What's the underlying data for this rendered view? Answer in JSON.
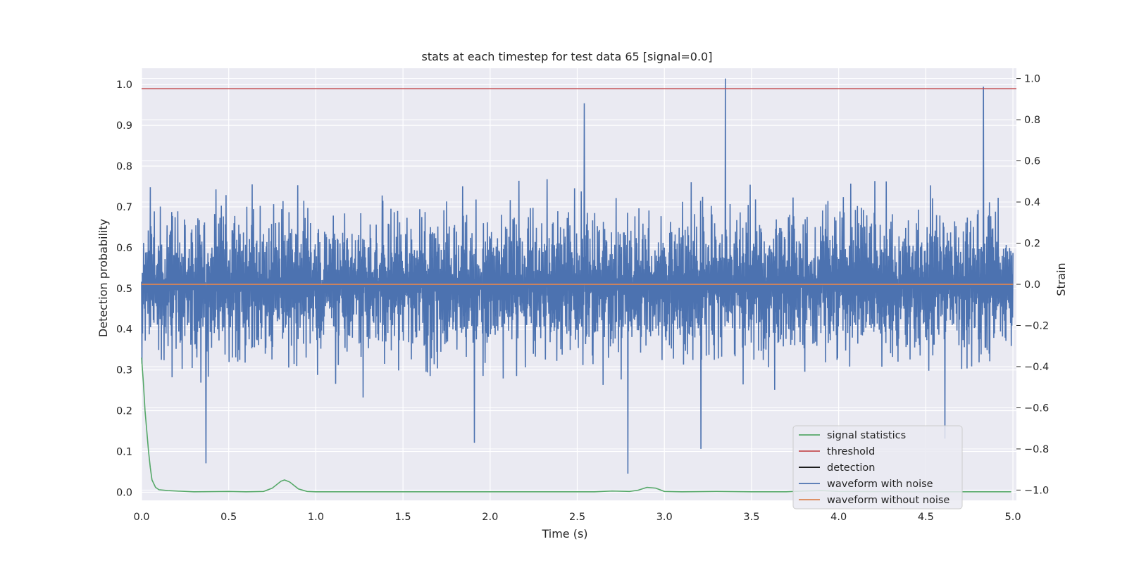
{
  "chart_data": {
    "type": "line",
    "title": "stats at each timestep for test data 65 [signal=0.0]",
    "xlabel": "Time (s)",
    "ylabel": "Detection probability",
    "y2label": "Strain",
    "xlim": [
      0.0,
      5.02
    ],
    "ylim": [
      -0.02,
      1.04
    ],
    "y2lim": [
      -1.05,
      1.05
    ],
    "xticks": [
      "0.0",
      "0.5",
      "1.0",
      "1.5",
      "2.0",
      "2.5",
      "3.0",
      "3.5",
      "4.0",
      "4.5",
      "5.0"
    ],
    "xtick_values": [
      0.0,
      0.5,
      1.0,
      1.5,
      2.0,
      2.5,
      3.0,
      3.5,
      4.0,
      4.5,
      5.0
    ],
    "yticks": [
      "0.0",
      "0.1",
      "0.2",
      "0.3",
      "0.4",
      "0.5",
      "0.6",
      "0.7",
      "0.8",
      "0.9",
      "1.0"
    ],
    "ytick_values": [
      0.0,
      0.1,
      0.2,
      0.3,
      0.4,
      0.5,
      0.6,
      0.7,
      0.8,
      0.9,
      1.0
    ],
    "y2ticks": [
      "−1.0",
      "−0.8",
      "−0.6",
      "−0.4",
      "−0.2",
      "0.0",
      "0.2",
      "0.4",
      "0.6",
      "0.8",
      "1.0"
    ],
    "y2tick_values": [
      -1.0,
      -0.8,
      -0.6,
      -0.4,
      -0.2,
      0.0,
      0.2,
      0.4,
      0.6,
      0.8,
      1.0
    ],
    "grid": true,
    "legend_position": "lower-right",
    "legend": [
      {
        "label": "signal statistics",
        "color": "#55a868"
      },
      {
        "label": "threshold",
        "color": "#c44e52"
      },
      {
        "label": "detection",
        "color": "#000000"
      },
      {
        "label": "waveform with noise",
        "color": "#4c72b0"
      },
      {
        "label": "waveform without noise",
        "color": "#dd8452"
      }
    ],
    "series": [
      {
        "name": "signal statistics",
        "axis": "left",
        "color": "#55a868",
        "x": [
          0.0,
          0.01,
          0.02,
          0.03,
          0.04,
          0.05,
          0.06,
          0.08,
          0.1,
          0.15,
          0.2,
          0.3,
          0.5,
          0.6,
          0.7,
          0.75,
          0.8,
          0.82,
          0.85,
          0.9,
          0.95,
          1.0,
          1.5,
          2.0,
          2.5,
          2.6,
          2.7,
          2.8,
          2.85,
          2.9,
          2.95,
          3.0,
          3.1,
          3.3,
          3.5,
          3.7,
          3.8,
          3.9,
          4.0,
          4.5,
          4.99
        ],
        "y": [
          0.33,
          0.27,
          0.2,
          0.15,
          0.1,
          0.06,
          0.03,
          0.012,
          0.006,
          0.004,
          0.003,
          0.001,
          0.002,
          0.001,
          0.002,
          0.01,
          0.027,
          0.03,
          0.025,
          0.008,
          0.002,
          0.001,
          0.001,
          0.001,
          0.001,
          0.001,
          0.003,
          0.002,
          0.005,
          0.012,
          0.01,
          0.002,
          0.001,
          0.002,
          0.001,
          0.001,
          0.003,
          0.004,
          0.002,
          0.001,
          0.001
        ]
      },
      {
        "name": "threshold",
        "axis": "left",
        "color": "#c44e52",
        "x": [
          0.0,
          5.02
        ],
        "y": [
          0.99,
          0.99
        ]
      },
      {
        "name": "waveform with noise",
        "axis": "right",
        "color": "#4c72b0",
        "style": "dense noise, approx ±0.35 typical amplitude",
        "peaks": [
          {
            "x": 0.37,
            "y": -0.87
          },
          {
            "x": 1.91,
            "y": -0.77
          },
          {
            "x": 2.54,
            "y": 0.88
          },
          {
            "x": 2.79,
            "y": -0.92
          },
          {
            "x": 3.21,
            "y": -0.8
          },
          {
            "x": 3.35,
            "y": 1.0
          },
          {
            "x": 4.61,
            "y": -0.75
          },
          {
            "x": 4.83,
            "y": 0.96
          }
        ]
      },
      {
        "name": "waveform without noise",
        "axis": "right",
        "color": "#dd8452",
        "x": [
          0.0,
          5.0
        ],
        "y": [
          0.0,
          0.0
        ]
      }
    ]
  }
}
